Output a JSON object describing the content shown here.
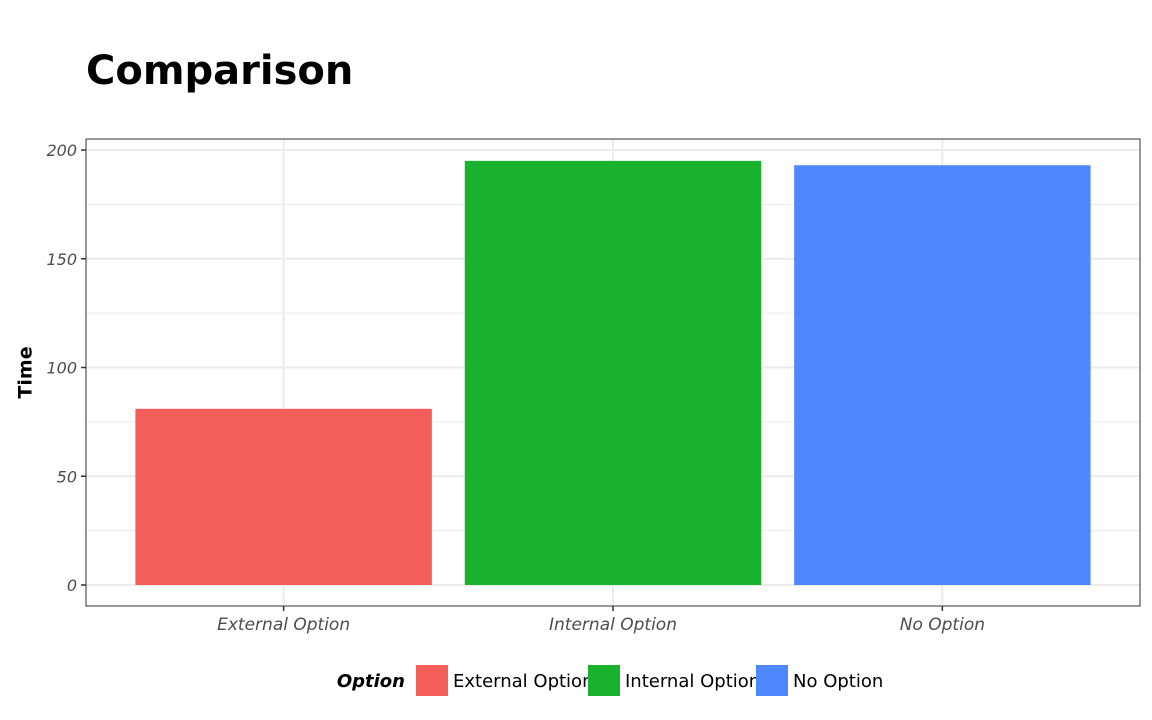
{
  "chart_data": {
    "type": "bar",
    "title": "Comparison",
    "xlabel": "",
    "ylabel": "Time",
    "categories": [
      "External Option",
      "Internal Option",
      "No Option"
    ],
    "values": [
      81,
      195,
      193
    ],
    "ylim": [
      0,
      205
    ],
    "yticks": [
      0,
      50,
      100,
      150,
      200
    ],
    "grid": true,
    "legend": {
      "title": "Option",
      "position": "bottom",
      "entries": [
        "External Option",
        "Internal Option",
        "No Option"
      ]
    },
    "colors": [
      "#F35E5A",
      "#19B22E",
      "#4F87FE"
    ]
  }
}
